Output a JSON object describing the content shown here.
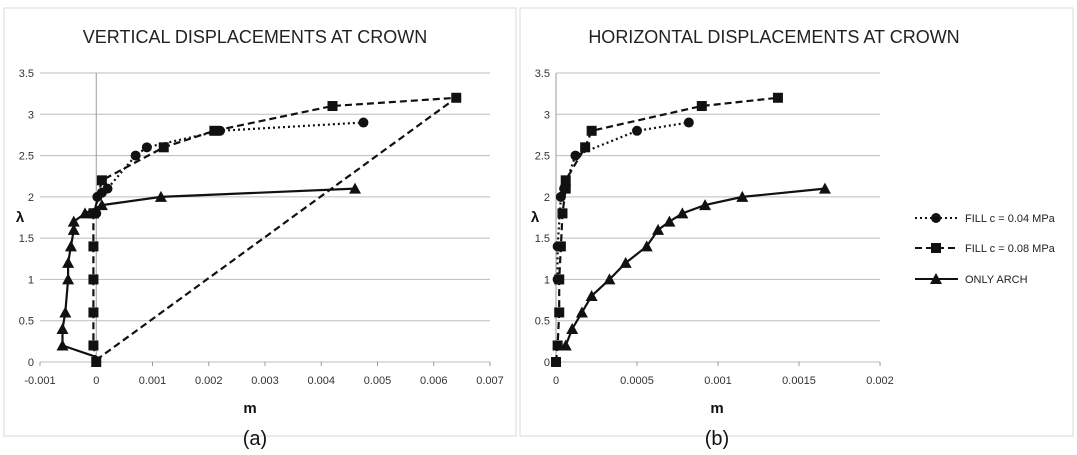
{
  "panel_labels": [
    "(a)",
    "(b)"
  ],
  "chart_data": [
    {
      "type": "line",
      "title": "VERTICAL DISPLACEMENTS AT CROWN",
      "xlabel": "m",
      "ylabel": "λ",
      "xlim": [
        -0.001,
        0.007
      ],
      "ylim": [
        0,
        3.5
      ],
      "xticks": [
        "-0.001",
        "0",
        "0.001",
        "0.002",
        "0.003",
        "0.004",
        "0.005",
        "0.006",
        "0.007"
      ],
      "yticks": [
        "0",
        "0.5",
        "1",
        "1.5",
        "2",
        "2.5",
        "3",
        "3.5"
      ],
      "grid": "horizontal",
      "series": [
        {
          "name": "FILL c = 0.04 MPa",
          "style": "dotted",
          "marker": "circle",
          "x": [
            0,
            2e-05,
            0.0001,
            0.0002,
            0.0007,
            0.0009,
            0.0022,
            0.00475
          ],
          "y": [
            1.8,
            2.0,
            2.05,
            2.1,
            2.5,
            2.6,
            2.8,
            2.9
          ]
        },
        {
          "name": "FILL c = 0.08 MPa",
          "style": "dashed",
          "marker": "square",
          "x": [
            0,
            -5e-05,
            -5e-05,
            -5e-05,
            -5e-05,
            -5e-05,
            -4e-05,
            0.0001,
            0.0012,
            0.0021,
            0.0042,
            0.0064
          ],
          "y": [
            0,
            0.2,
            0.6,
            1.0,
            1.4,
            1.8,
            1.8,
            2.2,
            2.6,
            2.8,
            3.1,
            3.2
          ],
          "end_point": {
            "x": 5e-05,
            "y": 0.05
          }
        },
        {
          "name": "ONLY ARCH",
          "style": "solid",
          "marker": "triangle",
          "x": [
            -0.0006,
            -0.0006,
            -0.00055,
            -0.0005,
            -0.0005,
            -0.00045,
            -0.0004,
            -0.0004,
            -0.0002,
            0.0001,
            0.00115,
            0.0046
          ],
          "y": [
            0.2,
            0.4,
            0.6,
            1.0,
            1.2,
            1.4,
            1.6,
            1.7,
            1.8,
            1.9,
            2.0,
            2.1
          ],
          "start_point": {
            "x": 5e-05,
            "y": 0.05
          }
        }
      ]
    },
    {
      "type": "line",
      "title": "HORIZONTAL DISPLACEMENTS AT CROWN",
      "xlabel": "m",
      "ylabel": "λ",
      "xlim": [
        0,
        0.002
      ],
      "ylim": [
        0,
        3.5
      ],
      "xticks": [
        "0",
        "0.0005",
        "0.001",
        "0.0015",
        "0.002"
      ],
      "yticks": [
        "0",
        "0.5",
        "1",
        "1.5",
        "2",
        "2.5",
        "3",
        "3.5"
      ],
      "grid": "horizontal",
      "series": [
        {
          "name": "FILL c = 0.04 MPa",
          "style": "dotted",
          "marker": "circle",
          "x": [
            1e-05,
            1e-05,
            3e-05,
            5e-05,
            0.00012,
            0.0005,
            0.00082
          ],
          "y": [
            1.0,
            1.4,
            2.0,
            2.1,
            2.5,
            2.8,
            2.9
          ]
        },
        {
          "name": "FILL c = 0.08 MPa",
          "style": "dashed",
          "marker": "square",
          "x": [
            0,
            1e-05,
            2e-05,
            2e-05,
            3e-05,
            4e-05,
            6e-05,
            6e-05,
            0.00018,
            0.00022,
            0.0009,
            0.00137
          ],
          "y": [
            0,
            0.2,
            0.6,
            1.0,
            1.4,
            1.8,
            2.1,
            2.2,
            2.6,
            2.8,
            3.1,
            3.2
          ]
        },
        {
          "name": "ONLY ARCH",
          "style": "solid",
          "marker": "triangle",
          "x": [
            6e-05,
            0.0001,
            0.00016,
            0.00022,
            0.00033,
            0.00043,
            0.00056,
            0.00063,
            0.0007,
            0.00078,
            0.00092,
            0.00115,
            0.00166
          ],
          "y": [
            0.2,
            0.4,
            0.6,
            0.8,
            1.0,
            1.2,
            1.4,
            1.6,
            1.7,
            1.8,
            1.9,
            2.0,
            2.1
          ]
        }
      ]
    }
  ],
  "legend": {
    "placement": "right",
    "entries": [
      "FILL c = 0.04 MPa",
      "FILL c = 0.08 MPa",
      "ONLY ARCH"
    ]
  }
}
